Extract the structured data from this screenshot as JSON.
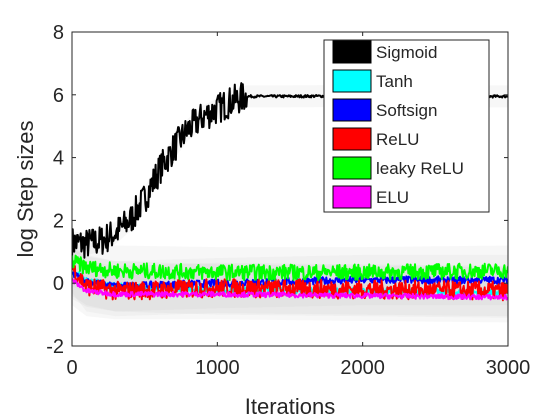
{
  "chart_data": {
    "type": "line",
    "title": "",
    "xlabel": "Iterations",
    "ylabel": "log Step sizes",
    "xlim": [
      0,
      3000
    ],
    "ylim": [
      -2,
      8
    ],
    "xticks": [
      0,
      1000,
      2000,
      3000
    ],
    "yticks": [
      -2,
      0,
      2,
      4,
      6,
      8
    ],
    "grid": false,
    "legend_position": "top-right",
    "series": [
      {
        "name": "Sigmoid",
        "color": "#000000",
        "x": [
          0,
          100,
          200,
          300,
          400,
          500,
          600,
          700,
          800,
          900,
          1000,
          1100,
          1200,
          1500,
          2000,
          2500,
          3000
        ],
        "y": [
          1.3,
          1.25,
          1.35,
          1.6,
          2.0,
          2.7,
          3.6,
          4.3,
          4.9,
          5.3,
          5.55,
          5.8,
          5.95,
          5.95,
          5.97,
          5.95,
          5.95
        ],
        "noise": 0.5
      },
      {
        "name": "Tanh",
        "color": "#00ffff",
        "x": [
          0,
          100,
          300,
          1000,
          2000,
          3000
        ],
        "y": [
          0.4,
          0.1,
          -0.1,
          -0.2,
          -0.25,
          -0.3
        ],
        "noise": 0.1
      },
      {
        "name": "Softsign",
        "color": "#0000ff",
        "x": [
          0,
          100,
          300,
          1000,
          2000,
          3000
        ],
        "y": [
          0.3,
          0.05,
          -0.1,
          0.0,
          0.1,
          0.1
        ],
        "noise": 0.12
      },
      {
        "name": "ReLU",
        "color": "#ff0000",
        "x": [
          0,
          100,
          300,
          1000,
          2000,
          3000
        ],
        "y": [
          0.5,
          -0.1,
          -0.25,
          -0.15,
          -0.2,
          -0.25
        ],
        "noise": 0.3
      },
      {
        "name": "leaky ReLU",
        "color": "#00ff00",
        "x": [
          0,
          100,
          300,
          1000,
          2000,
          3000
        ],
        "y": [
          0.7,
          0.5,
          0.4,
          0.35,
          0.35,
          0.4
        ],
        "noise": 0.25
      },
      {
        "name": "ELU",
        "color": "#ff00ff",
        "x": [
          0,
          100,
          300,
          1000,
          2000,
          3000
        ],
        "y": [
          0.1,
          -0.25,
          -0.35,
          -0.35,
          -0.4,
          -0.45
        ],
        "noise": 0.08
      }
    ]
  }
}
